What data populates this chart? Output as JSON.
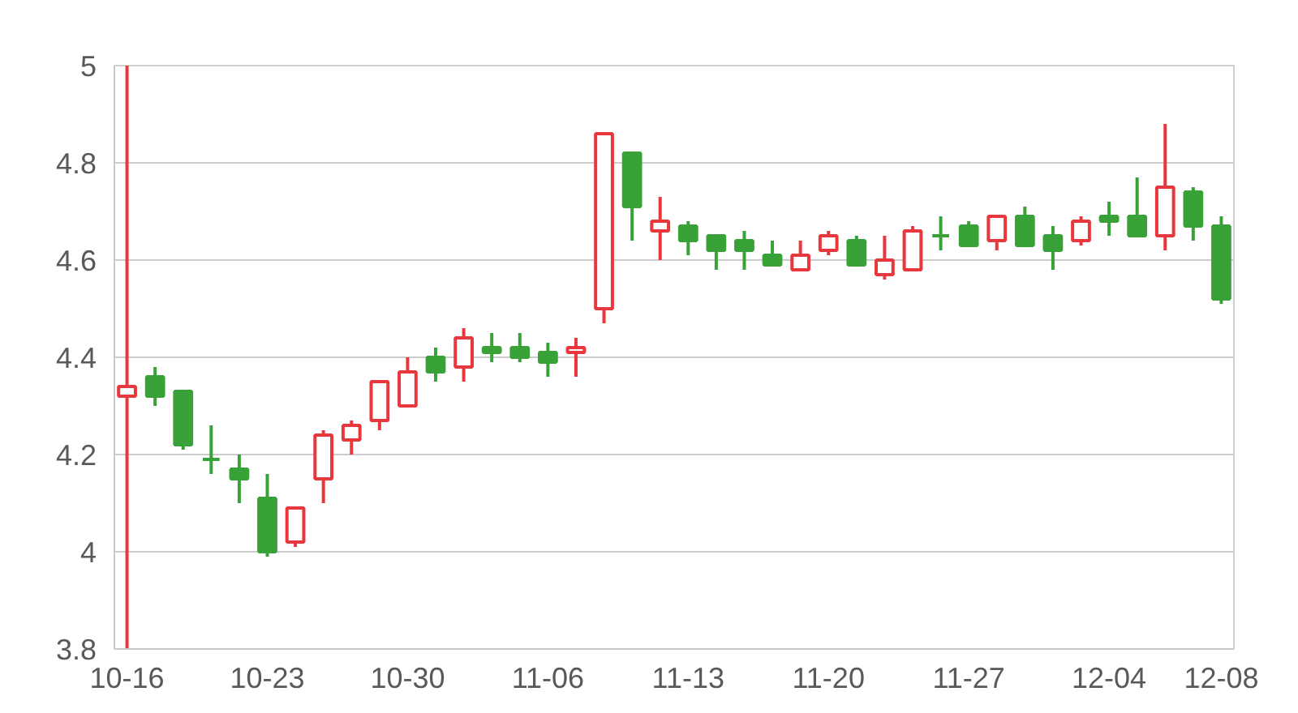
{
  "chart_data": {
    "type": "candlestick",
    "categories": [
      "10-16",
      null,
      null,
      null,
      null,
      "10-23",
      null,
      null,
      null,
      null,
      "10-30",
      null,
      null,
      null,
      null,
      "11-06",
      null,
      null,
      null,
      null,
      "11-13",
      null,
      null,
      null,
      null,
      "11-20",
      null,
      null,
      null,
      null,
      "11-27",
      null,
      null,
      null,
      null,
      "12-04",
      null,
      null,
      null,
      "12-08"
    ],
    "ohlc": [
      [
        4.32,
        5.0,
        3.8,
        4.34
      ],
      [
        4.36,
        4.38,
        4.3,
        4.32
      ],
      [
        4.33,
        4.33,
        4.21,
        4.22
      ],
      [
        4.19,
        4.26,
        4.16,
        4.19
      ],
      [
        4.17,
        4.2,
        4.1,
        4.15
      ],
      [
        4.11,
        4.16,
        3.99,
        4.0
      ],
      [
        4.02,
        4.09,
        4.01,
        4.09
      ],
      [
        4.15,
        4.25,
        4.1,
        4.24
      ],
      [
        4.23,
        4.27,
        4.2,
        4.26
      ],
      [
        4.27,
        4.35,
        4.25,
        4.35
      ],
      [
        4.3,
        4.4,
        4.3,
        4.37
      ],
      [
        4.4,
        4.42,
        4.35,
        4.37
      ],
      [
        4.38,
        4.46,
        4.35,
        4.44
      ],
      [
        4.42,
        4.45,
        4.39,
        4.41
      ],
      [
        4.42,
        4.45,
        4.39,
        4.4
      ],
      [
        4.41,
        4.43,
        4.36,
        4.39
      ],
      [
        4.41,
        4.44,
        4.36,
        4.42
      ],
      [
        4.5,
        4.86,
        4.47,
        4.86
      ],
      [
        4.82,
        4.82,
        4.64,
        4.71
      ],
      [
        4.66,
        4.73,
        4.6,
        4.68
      ],
      [
        4.67,
        4.68,
        4.61,
        4.64
      ],
      [
        4.65,
        4.65,
        4.58,
        4.62
      ],
      [
        4.64,
        4.66,
        4.58,
        4.62
      ],
      [
        4.61,
        4.64,
        4.59,
        4.59
      ],
      [
        4.58,
        4.64,
        4.58,
        4.61
      ],
      [
        4.62,
        4.66,
        4.61,
        4.65
      ],
      [
        4.64,
        4.65,
        4.59,
        4.59
      ],
      [
        4.57,
        4.65,
        4.56,
        4.6
      ],
      [
        4.58,
        4.67,
        4.58,
        4.66
      ],
      [
        4.65,
        4.69,
        4.62,
        4.65
      ],
      [
        4.67,
        4.68,
        4.63,
        4.63
      ],
      [
        4.64,
        4.69,
        4.62,
        4.69
      ],
      [
        4.69,
        4.71,
        4.63,
        4.63
      ],
      [
        4.65,
        4.67,
        4.58,
        4.62
      ],
      [
        4.64,
        4.69,
        4.63,
        4.68
      ],
      [
        4.69,
        4.72,
        4.65,
        4.68
      ],
      [
        4.69,
        4.77,
        4.65,
        4.65
      ],
      [
        4.65,
        4.88,
        4.62,
        4.75
      ],
      [
        4.74,
        4.75,
        4.64,
        4.67
      ],
      [
        4.67,
        4.69,
        4.51,
        4.52
      ]
    ],
    "colors": [
      "#e8383d",
      "#38a137",
      "#38a137",
      "#38a137",
      "#38a137",
      "#38a137",
      "#e8383d",
      "#e8383d",
      "#e8383d",
      "#e8383d",
      "#e8383d",
      "#38a137",
      "#e8383d",
      "#38a137",
      "#38a137",
      "#38a137",
      "#e8383d",
      "#e8383d",
      "#38a137",
      "#e8383d",
      "#38a137",
      "#38a137",
      "#38a137",
      "#38a137",
      "#e8383d",
      "#e8383d",
      "#38a137",
      "#e8383d",
      "#e8383d",
      "#38a137",
      "#38a137",
      "#e8383d",
      "#38a137",
      "#38a137",
      "#e8383d",
      "#38a137",
      "#38a137",
      "#e8383d",
      "#38a137",
      "#38a137"
    ],
    "ylim": [
      3.8,
      5
    ],
    "yticks": [
      3.8,
      4,
      4.2,
      4.4,
      4.6,
      4.8,
      5
    ],
    "grid": "y"
  }
}
